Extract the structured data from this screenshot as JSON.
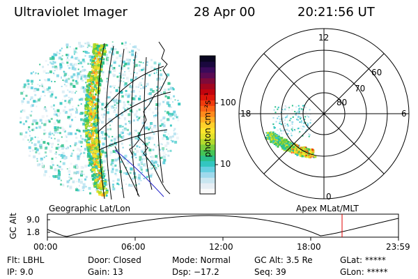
{
  "header": {
    "instrument": "Ultraviolet Imager",
    "date": "28 Apr 00",
    "time": "20:21:56 UT"
  },
  "colorbar": {
    "label": "photon cm⁻²s⁻¹",
    "ticks": [
      "100",
      "10"
    ],
    "colors": [
      "#fafafa",
      "#e6eef4",
      "#c9e6f0",
      "#9fd9ec",
      "#66cfe0",
      "#33c6c0",
      "#2bc08a",
      "#44c455",
      "#7ccd3a",
      "#b4da2c",
      "#e3e22b",
      "#fbe52c",
      "#ffd02a",
      "#ffae23",
      "#ff8a1c",
      "#f96414",
      "#ef3b0d",
      "#dd160a",
      "#c2040e",
      "#a2061f",
      "#7e0a3a",
      "#5a0a52",
      "#3a0a5a",
      "#1a083e",
      "#0a0620"
    ]
  },
  "panels": {
    "geographic_label": "Geographic Lat/Lon",
    "apex_label": "Apex MLat/MLT"
  },
  "polar": {
    "mlt_labels": {
      "top": "12",
      "left": "18",
      "right": "6",
      "bottom": "0"
    },
    "lat_labels": [
      "80",
      "70",
      "60"
    ]
  },
  "timeline": {
    "ylabel": "GC Alt",
    "yticks": [
      "9.0",
      "1.8"
    ],
    "xticks": [
      "00:00",
      "06:00",
      "12:00",
      "18:00",
      "23:59"
    ],
    "marker_color": "#e00000"
  },
  "info": {
    "row1": {
      "filter": "Flt: LBHL",
      "door": "Door: Closed",
      "mode": "Mode: Normal",
      "gc_alt": "GC Alt: 3.5 Re",
      "glat": "GLat: *****"
    },
    "row2": {
      "ip": "IP:  9.0",
      "gain": "Gain: 13",
      "dsp": "Dsp:  −17.2",
      "seq": "Seq: 39",
      "glon": "GLon: *****"
    }
  }
}
